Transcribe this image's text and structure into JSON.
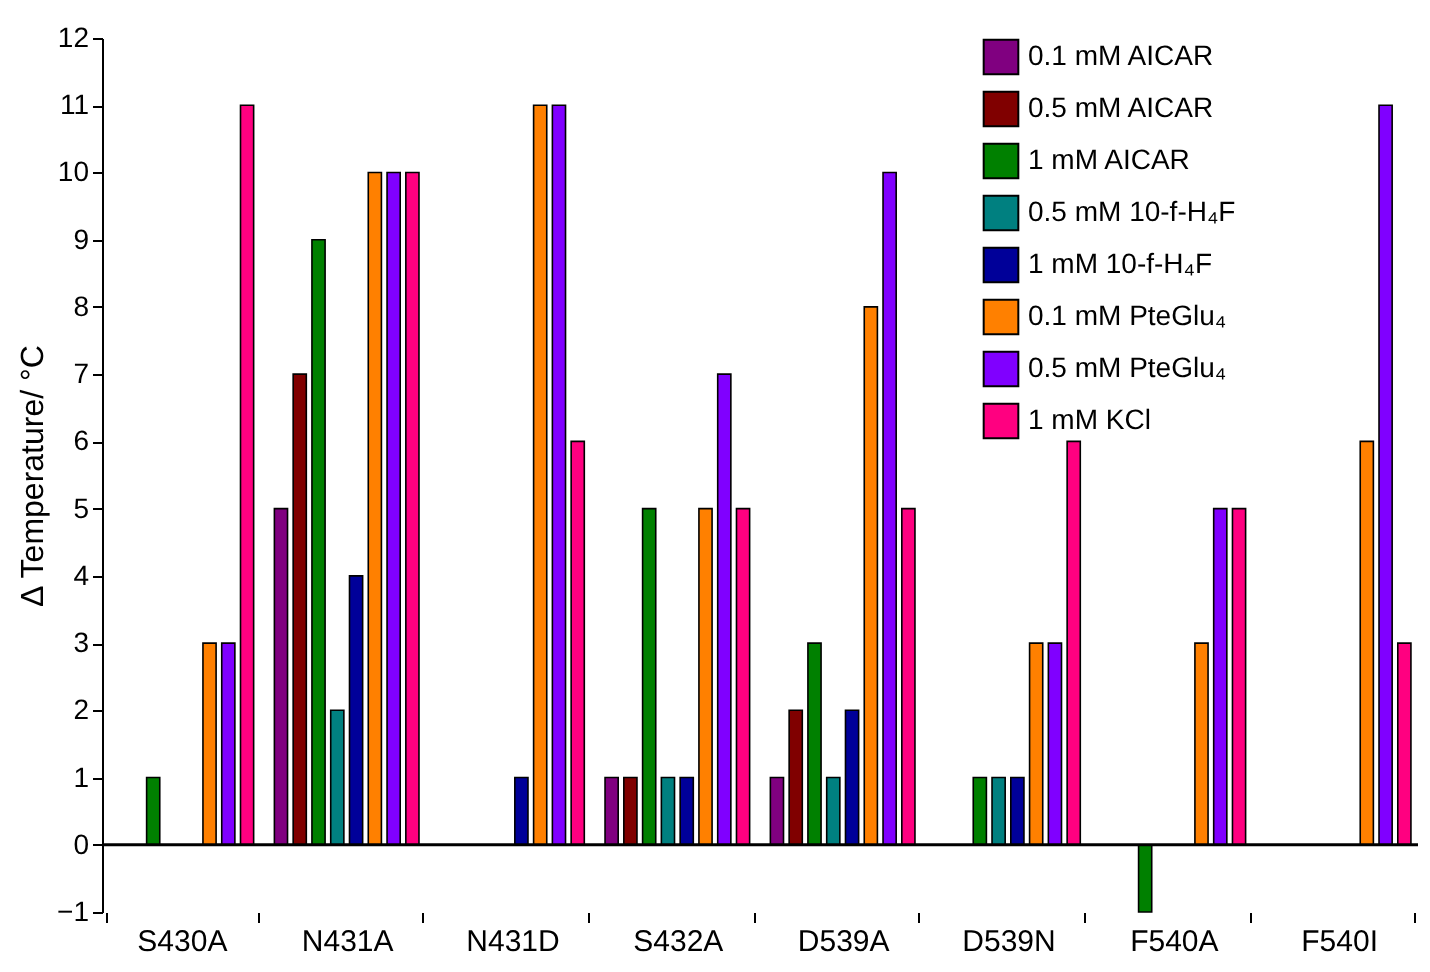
{
  "chart_data": {
    "type": "bar",
    "ylabel": "Δ Temperature/ °C",
    "categories": [
      "S430A",
      "N431A",
      "N431D",
      "S432A",
      "D539A",
      "D539N",
      "F540A",
      "F540I"
    ],
    "series": [
      {
        "name": "0.1 mM AICAR",
        "color": "#800080",
        "values": [
          null,
          5,
          null,
          1,
          1,
          null,
          null,
          null
        ]
      },
      {
        "name": "0.5 mM AICAR",
        "color": "#800000",
        "values": [
          null,
          7,
          null,
          1,
          2,
          null,
          null,
          null
        ]
      },
      {
        "name": "1 mM AICAR",
        "color": "#008000",
        "values": [
          1,
          9,
          null,
          5,
          3,
          1,
          -1,
          null
        ]
      },
      {
        "name": "0.5 mM 10-f-H₄F",
        "color": "#008080",
        "values": [
          null,
          2,
          null,
          1,
          1,
          1,
          null,
          null
        ]
      },
      {
        "name": "1 mM 10-f-H₄F",
        "color": "#000099",
        "values": [
          null,
          4,
          1,
          1,
          2,
          1,
          null,
          null
        ]
      },
      {
        "name": "0.1 mM PteGlu₄",
        "color": "#ff8000",
        "values": [
          3,
          10,
          11,
          5,
          8,
          3,
          3,
          6
        ]
      },
      {
        "name": "0.5 mM PteGlu₄",
        "color": "#8000ff",
        "values": [
          3,
          10,
          11,
          7,
          10,
          3,
          5,
          11
        ]
      },
      {
        "name": "1 mM KCl",
        "color": "#ff0080",
        "values": [
          11,
          10,
          6,
          5,
          5,
          6,
          5,
          3
        ]
      }
    ],
    "ylim": [
      -1,
      12
    ],
    "yticks": [
      -1,
      0,
      1,
      2,
      3,
      4,
      5,
      6,
      7,
      8,
      9,
      10,
      11,
      12
    ],
    "grid": false,
    "ref_lines": [
      {
        "axis": "y",
        "value": 0,
        "color": "#000000"
      }
    ],
    "legend": "top right"
  }
}
